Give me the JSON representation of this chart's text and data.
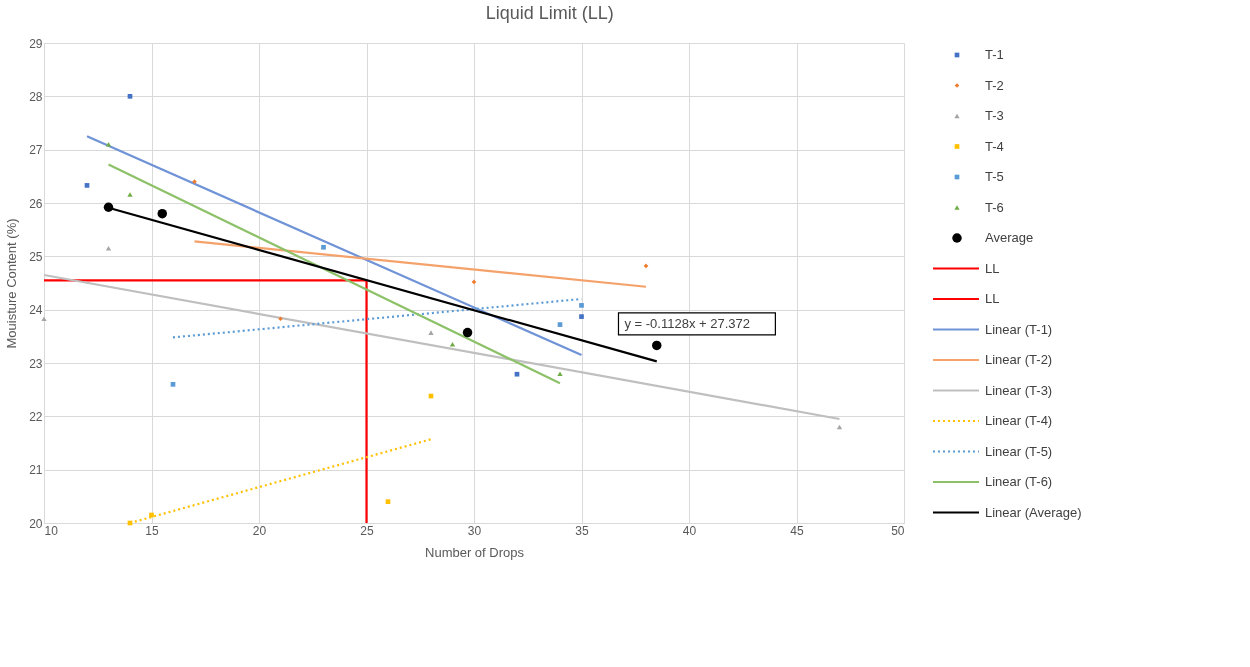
{
  "chart_data": {
    "type": "scatter",
    "title": "Liquid Limit (LL)",
    "xlabel": "Number of Drops",
    "ylabel": "Mouisture Content (%)",
    "xlim": [
      10,
      50
    ],
    "xticks": [
      10,
      15,
      20,
      25,
      30,
      35,
      40,
      45,
      50
    ],
    "ylim": [
      20,
      29
    ],
    "yticks": [
      20,
      21,
      22,
      23,
      24,
      25,
      26,
      27,
      28,
      29
    ],
    "grid": true,
    "legend": "right",
    "series": [
      {
        "name": "T-1",
        "marker": "square",
        "color": "#4472c4",
        "x": [
          14,
          12,
          32,
          35
        ],
        "values": [
          28.0,
          26.33,
          22.79,
          23.87
        ]
      },
      {
        "name": "T-2",
        "marker": "diamond",
        "color": "#ed7d31",
        "x": [
          17,
          21,
          30,
          38
        ],
        "values": [
          26.4,
          23.83,
          24.52,
          24.82
        ]
      },
      {
        "name": "T-3",
        "marker": "triangle",
        "color": "#a5a5a5",
        "x": [
          10,
          13,
          28,
          47
        ],
        "values": [
          23.83,
          25.15,
          23.57,
          21.8
        ]
      },
      {
        "name": "T-4",
        "marker": "square",
        "color": "#ffc000",
        "x": [
          14,
          15,
          26,
          28
        ],
        "values": [
          20.0,
          20.15,
          20.4,
          22.38
        ]
      },
      {
        "name": "T-5",
        "marker": "square",
        "color": "#5b9bd5",
        "x": [
          16,
          23,
          34,
          35
        ],
        "values": [
          22.6,
          25.17,
          23.72,
          24.08
        ]
      },
      {
        "name": "T-6",
        "marker": "triangle",
        "color": "#70ad47",
        "x": [
          13,
          14,
          29,
          34
        ],
        "values": [
          27.1,
          26.16,
          23.35,
          22.8
        ]
      },
      {
        "name": "Average",
        "marker": "circle",
        "color": "#000000",
        "x": [
          13,
          15.5,
          29.7,
          38.5
        ],
        "values": [
          25.92,
          25.8,
          23.57,
          23.33
        ]
      },
      {
        "name": "LL",
        "type": "line",
        "line_style": "solid",
        "color": "#ff0000",
        "x": [
          10,
          25
        ],
        "values": [
          24.55,
          24.55
        ]
      },
      {
        "name": "LL",
        "type": "line",
        "line_style": "solid",
        "color": "#ff0000",
        "x": [
          25,
          25
        ],
        "values": [
          24.55,
          20
        ]
      },
      {
        "name": "Linear (T-1)",
        "type": "line",
        "line_style": "solid",
        "color": "#6f93d6",
        "x": [
          12,
          35
        ],
        "values": [
          27.25,
          23.15
        ]
      },
      {
        "name": "Linear (T-2)",
        "type": "line",
        "line_style": "solid",
        "color": "#f4a16a",
        "x": [
          17,
          38
        ],
        "values": [
          25.28,
          24.43
        ]
      },
      {
        "name": "Linear (T-3)",
        "type": "line",
        "line_style": "solid",
        "color": "#bfbfbf",
        "x": [
          10,
          47
        ],
        "values": [
          24.65,
          21.95
        ]
      },
      {
        "name": "Linear (T-4)",
        "type": "line",
        "line_style": "dotted",
        "color": "#ffc000",
        "x": [
          14,
          28
        ],
        "values": [
          20.0,
          21.57
        ]
      },
      {
        "name": "Linear (T-5)",
        "type": "line",
        "line_style": "dotted",
        "color": "#5b9bd5",
        "x": [
          16,
          35
        ],
        "values": [
          23.48,
          24.2
        ]
      },
      {
        "name": "Linear (T-6)",
        "type": "line",
        "line_style": "solid",
        "color": "#8cc168",
        "x": [
          13,
          34
        ],
        "values": [
          26.72,
          22.62
        ]
      },
      {
        "name": "Linear (Average)",
        "type": "line",
        "line_style": "solid",
        "color": "#000000",
        "x": [
          13,
          38.5
        ],
        "values": [
          25.91,
          23.03
        ]
      }
    ],
    "annotations": [
      "y = -0.1128x + 27.372"
    ]
  }
}
